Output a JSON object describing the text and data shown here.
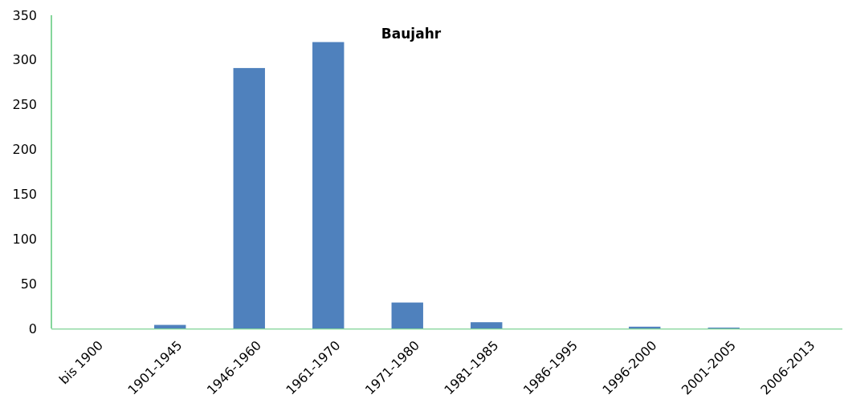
{
  "chart_data": {
    "type": "bar",
    "title": "Baujahr",
    "categories": [
      "bis 1900",
      "1901-1945",
      "1946-1960",
      "1961-1970",
      "1971-1980",
      "1981-1985",
      "1986-1995",
      "1996-2000",
      "2001-2005",
      "2006-2013"
    ],
    "values": [
      0,
      4,
      291,
      320,
      29,
      7,
      0,
      2,
      1,
      0
    ],
    "color": "#4f81bd",
    "ylim": [
      0,
      350
    ],
    "yticks": [
      0,
      50,
      100,
      150,
      200,
      250,
      300,
      350
    ],
    "grid": false
  }
}
